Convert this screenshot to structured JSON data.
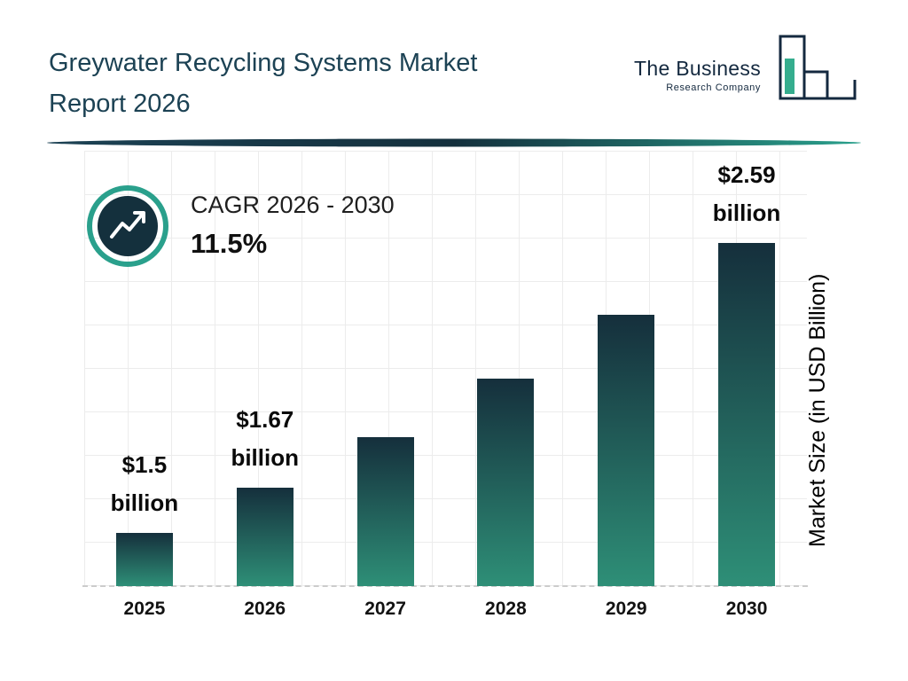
{
  "header": {
    "title_line1": "Greywater Recycling Systems Market",
    "title_line2": "Report 2026",
    "logo": {
      "name": "The Business",
      "subtitle": "Research Company"
    }
  },
  "cagr": {
    "label": "CAGR 2026 - 2030",
    "value": "11.5%"
  },
  "colors": {
    "title": "#1c4254",
    "accent_teal": "#2aa08c",
    "dark_navy": "#14303d",
    "bar_top": "#152f3c",
    "bar_bottom": "#2e8f77"
  },
  "chart_data": {
    "type": "bar",
    "title": "Greywater Recycling Systems Market Report 2026",
    "categories": [
      "2025",
      "2026",
      "2027",
      "2028",
      "2029",
      "2030"
    ],
    "values": [
      1.5,
      1.67,
      1.86,
      2.08,
      2.32,
      2.59
    ],
    "unit": "USD Billion",
    "bar_labels": [
      {
        "category": "2025",
        "line1": "$1.5",
        "line2": "billion"
      },
      {
        "category": "2026",
        "line1": "$1.67",
        "line2": "billion"
      },
      {
        "category": "2030",
        "line1": "$2.59",
        "line2": "billion"
      }
    ],
    "xlabel": "",
    "ylabel": "Market Size (in USD Billion)",
    "ylim": [
      1.3,
      2.7
    ],
    "grid": true,
    "legend": false,
    "bar_gradient": [
      "#152f3c",
      "#2e8f77"
    ],
    "cagr_note": "CAGR 2026 - 2030: 11.5%"
  }
}
